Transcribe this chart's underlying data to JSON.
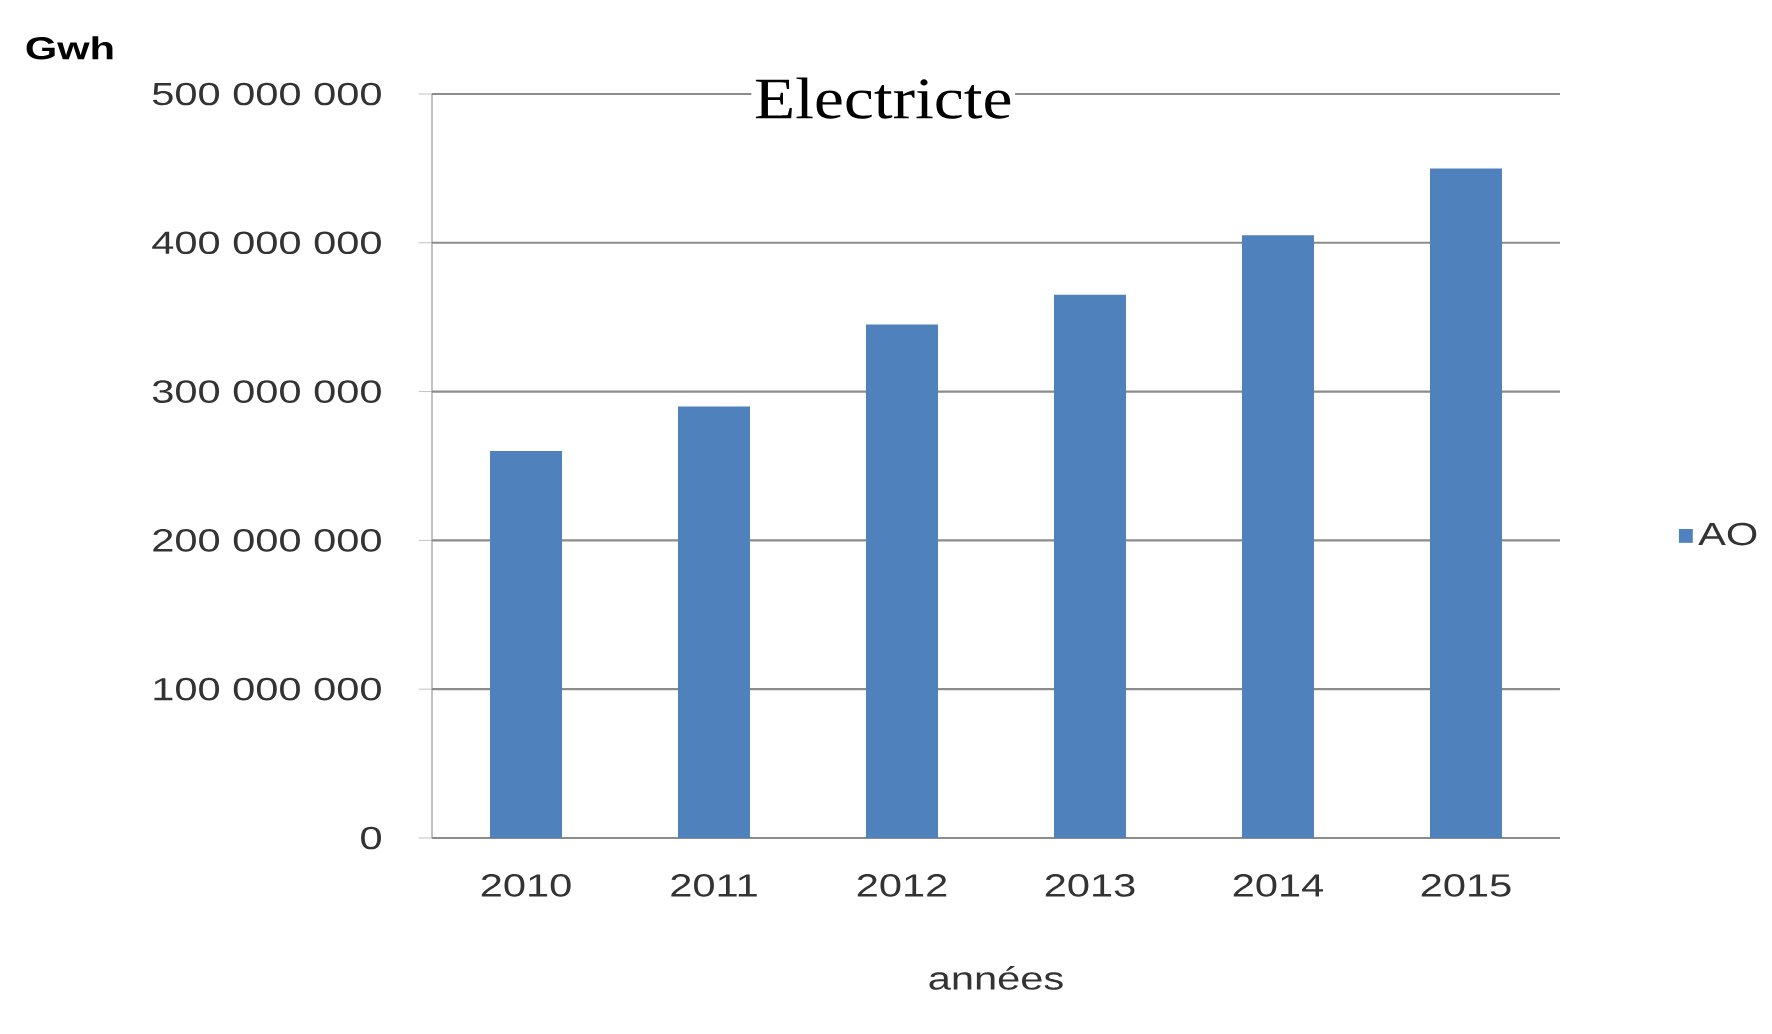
{
  "chart_data": {
    "type": "bar",
    "title": "Electricte",
    "xlabel": "années",
    "ylabel": "Gwh",
    "categories": [
      "2010",
      "2011",
      "2012",
      "2013",
      "2014",
      "2015"
    ],
    "series": [
      {
        "name": "AO",
        "color": "#4f81bd",
        "values": [
          260000000,
          290000000,
          345000000,
          365000000,
          405000000,
          450000000
        ]
      }
    ],
    "ylim": [
      0,
      500000000
    ],
    "yticks": [
      0,
      {
        "value": 100000000,
        "label": "100 000 000"
      },
      {
        "value": 200000000,
        "label": "200 000 000"
      },
      {
        "value": 300000000,
        "label": "300 000 000"
      },
      {
        "value": 400000000,
        "label": "400 000 000"
      },
      {
        "value": 500000000,
        "label": "500 000 000"
      }
    ],
    "grid": "y",
    "legend": "right"
  }
}
